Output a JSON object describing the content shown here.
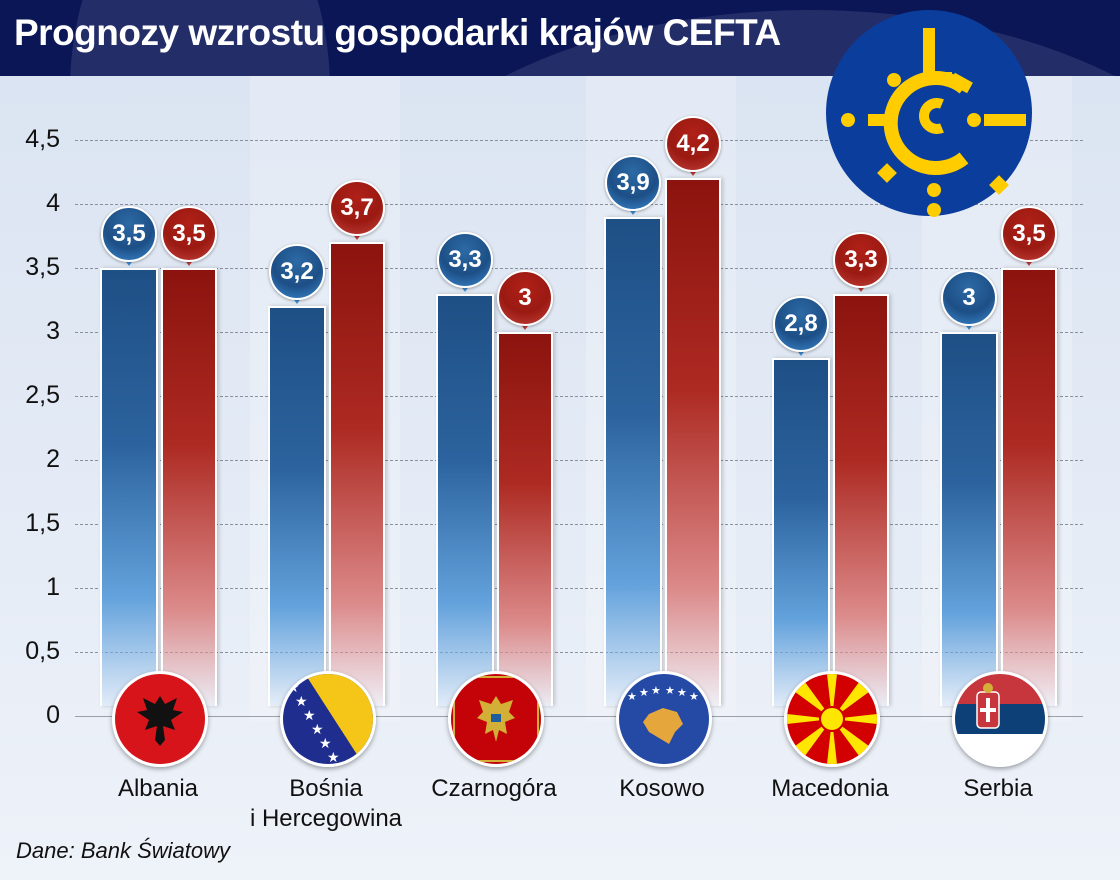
{
  "title": "Prognozy wzrostu gospodarki krajów CEFTA",
  "source": "Dane: Bank Światowy",
  "logo": "cefta-logo-icon",
  "colors": {
    "series_blue": "#1e4f85",
    "series_red": "#9a1a12",
    "header_bg": "#0b1657",
    "logo_blue": "#0b3d9c",
    "logo_yellow": "#ffcc00"
  },
  "y_axis": {
    "ticks": [
      "0",
      "0,5",
      "1",
      "1,5",
      "2",
      "2,5",
      "3",
      "3,5",
      "4",
      "4,5"
    ]
  },
  "countries": [
    {
      "name": "Albania",
      "name_line2": "",
      "blue": 3.5,
      "red": 3.5,
      "blue_label": "3,5",
      "red_label": "3,5",
      "flag": "albania-flag-icon"
    },
    {
      "name": "Bośnia",
      "name_line2": "i Hercegowina",
      "blue": 3.2,
      "red": 3.7,
      "blue_label": "3,2",
      "red_label": "3,7",
      "flag": "bosnia-flag-icon"
    },
    {
      "name": "Czarnogóra",
      "name_line2": "",
      "blue": 3.3,
      "red": 3.0,
      "blue_label": "3,3",
      "red_label": "3",
      "flag": "montenegro-flag-icon"
    },
    {
      "name": "Kosowo",
      "name_line2": "",
      "blue": 3.9,
      "red": 4.2,
      "blue_label": "3,9",
      "red_label": "4,2",
      "flag": "kosovo-flag-icon"
    },
    {
      "name": "Macedonia",
      "name_line2": "",
      "blue": 2.8,
      "red": 3.3,
      "blue_label": "2,8",
      "red_label": "3,3",
      "flag": "macedonia-flag-icon"
    },
    {
      "name": "Serbia",
      "name_line2": "",
      "blue": 3.0,
      "red": 3.5,
      "blue_label": "3",
      "red_label": "3,5",
      "flag": "serbia-flag-icon"
    }
  ],
  "chart_data": {
    "type": "bar",
    "title": "Prognozy wzrostu gospodarki krajów CEFTA",
    "categories": [
      "Albania",
      "Bośnia i Hercegowina",
      "Czarnogóra",
      "Kosowo",
      "Macedonia",
      "Serbia"
    ],
    "series": [
      {
        "name": "blue series",
        "color": "#1e4f85",
        "values": [
          3.5,
          3.2,
          3.3,
          3.9,
          2.8,
          3.0
        ]
      },
      {
        "name": "red series",
        "color": "#9a1a12",
        "values": [
          3.5,
          3.7,
          3.0,
          4.2,
          3.3,
          3.5
        ]
      }
    ],
    "xlabel": "",
    "ylabel": "",
    "ylim": [
      0,
      4.5
    ],
    "yticks": [
      0,
      0.5,
      1,
      1.5,
      2,
      2.5,
      3,
      3.5,
      4,
      4.5
    ],
    "decimal_separator": ",",
    "grid": "horizontal dashed",
    "legend": "none",
    "source": "Dane: Bank Światowy"
  }
}
